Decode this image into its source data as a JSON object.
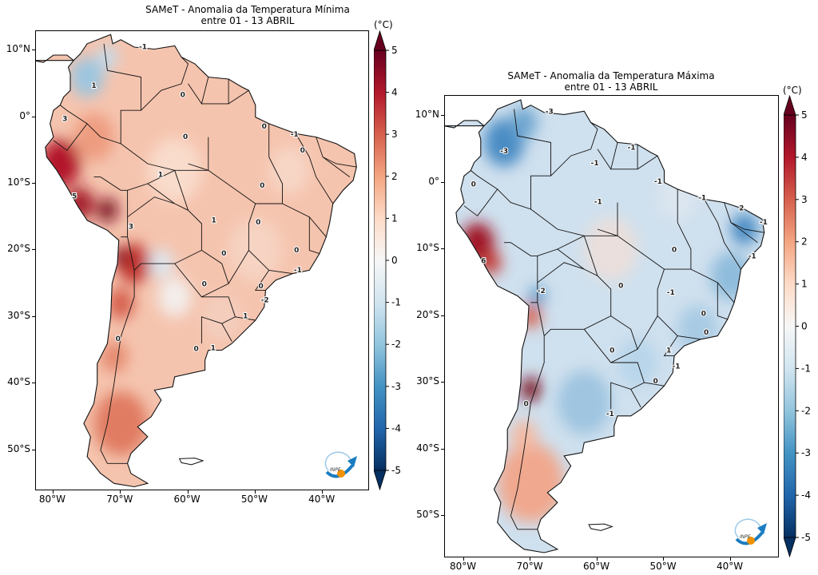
{
  "colors": {
    "scale": [
      "#053061",
      "#2166ac",
      "#4393c3",
      "#92c5de",
      "#d1e5f0",
      "#f7f7f7",
      "#fddbc7",
      "#f4a582",
      "#d6604d",
      "#b2182b",
      "#67001f"
    ],
    "border": "#000000",
    "logo_blue": "#1a7cc1",
    "logo_orange": "#f39200"
  },
  "maps": [
    {
      "title_line1": "SAMeT - Anomalia da Temperatura Mínima",
      "title_line2": "entre 01 - 13 ABRIL",
      "unit": "(°C)",
      "colorbar_ticks": [
        "5",
        "4",
        "3",
        "2",
        "1",
        "0",
        "-1",
        "-2",
        "-3",
        "-4",
        "-5"
      ],
      "colorbar_range": [
        -5,
        5
      ],
      "lon_ticks": [
        {
          "value": -80,
          "label": "80°W"
        },
        {
          "value": -70,
          "label": "70°W"
        },
        {
          "value": -60,
          "label": "60°W"
        },
        {
          "value": -50,
          "label": "50°W"
        },
        {
          "value": -40,
          "label": "40°W"
        }
      ],
      "lat_ticks": [
        {
          "value": 10,
          "label": "10°N"
        },
        {
          "value": 0,
          "label": "0°"
        },
        {
          "value": -10,
          "label": "10°S"
        },
        {
          "value": -20,
          "label": "20°S"
        },
        {
          "value": -30,
          "label": "30°S"
        },
        {
          "value": -40,
          "label": "40°S"
        },
        {
          "value": -50,
          "label": "50°S"
        }
      ],
      "contour_labels": [
        {
          "t": "-1",
          "lon": -66.7,
          "lat": 10.5
        },
        {
          "t": "1",
          "lon": -74,
          "lat": 4.7
        },
        {
          "t": "3",
          "lon": -78.3,
          "lat": -0.3
        },
        {
          "t": "0",
          "lon": -60.8,
          "lat": 3.3
        },
        {
          "t": "0",
          "lon": -60.4,
          "lat": -3
        },
        {
          "t": "0",
          "lon": -48.7,
          "lat": -1.4
        },
        {
          "t": "-1",
          "lon": -44.2,
          "lat": -2.6
        },
        {
          "t": "0",
          "lon": -43,
          "lat": -5
        },
        {
          "t": "1",
          "lon": -64.1,
          "lat": -8.7
        },
        {
          "t": "5",
          "lon": -76.9,
          "lat": -11.9
        },
        {
          "t": "0",
          "lon": -49,
          "lat": -10.3
        },
        {
          "t": "3",
          "lon": -68.5,
          "lat": -16.5
        },
        {
          "t": "1",
          "lon": -56.2,
          "lat": -15.5
        },
        {
          "t": "0",
          "lon": -49.6,
          "lat": -15.8
        },
        {
          "t": "0",
          "lon": -54.7,
          "lat": -20.5
        },
        {
          "t": "0",
          "lon": -43.9,
          "lat": -20
        },
        {
          "t": "-1",
          "lon": -43.7,
          "lat": -23
        },
        {
          "t": "0",
          "lon": -49.2,
          "lat": -25.4
        },
        {
          "t": "-2",
          "lon": -48.6,
          "lat": -27.5
        },
        {
          "t": "1",
          "lon": -51.5,
          "lat": -29.9
        },
        {
          "t": "0",
          "lon": -70.4,
          "lat": -33.3
        },
        {
          "t": "0",
          "lon": -58.8,
          "lat": -34.8
        },
        {
          "t": "1",
          "lon": -56.3,
          "lat": -34.7
        },
        {
          "t": "0",
          "lon": -57.6,
          "lat": -25.1
        }
      ],
      "logo_text": "INPE"
    },
    {
      "title_line1": "SAMeT - Anomalia da Temperatura Máxima",
      "title_line2": "entre 01 - 13 ABRIL",
      "unit": "(°C)",
      "colorbar_ticks": [
        "5",
        "4",
        "3",
        "2",
        "1",
        "0",
        "-1",
        "-2",
        "-3",
        "-4",
        "-5"
      ],
      "colorbar_range": [
        -5,
        5
      ],
      "lon_ticks": [
        {
          "value": -80,
          "label": "80°W"
        },
        {
          "value": -70,
          "label": "70°W"
        },
        {
          "value": -60,
          "label": "60°W"
        },
        {
          "value": -50,
          "label": "50°W"
        },
        {
          "value": -40,
          "label": "40°W"
        }
      ],
      "lat_ticks": [
        {
          "value": 10,
          "label": "10°N"
        },
        {
          "value": 0,
          "label": "0°"
        },
        {
          "value": -10,
          "label": "10°S"
        },
        {
          "value": -20,
          "label": "20°S"
        },
        {
          "value": -30,
          "label": "30°S"
        },
        {
          "value": -40,
          "label": "40°S"
        },
        {
          "value": -50,
          "label": "50°S"
        }
      ],
      "contour_labels": [
        {
          "t": "-3",
          "lon": -67.2,
          "lat": 10.6
        },
        {
          "t": "-3",
          "lon": -74,
          "lat": 4.7
        },
        {
          "t": "0",
          "lon": -78.6,
          "lat": -0.3
        },
        {
          "t": "-1",
          "lon": -60.4,
          "lat": 2.9
        },
        {
          "t": "-1",
          "lon": -54.9,
          "lat": 5.2
        },
        {
          "t": "-1",
          "lon": -50.9,
          "lat": 0.1
        },
        {
          "t": "-1",
          "lon": -44.3,
          "lat": -2.3
        },
        {
          "t": "2",
          "lon": -38.4,
          "lat": -3.9
        },
        {
          "t": "-1",
          "lon": -35.1,
          "lat": -6
        },
        {
          "t": "-1",
          "lon": -59.9,
          "lat": -2.9
        },
        {
          "t": "6",
          "lon": -77.1,
          "lat": -11.8
        },
        {
          "t": "0",
          "lon": -48.5,
          "lat": -10.1
        },
        {
          "t": "-1",
          "lon": -36.8,
          "lat": -11.1
        },
        {
          "t": "-2",
          "lon": -68.4,
          "lat": -16.3
        },
        {
          "t": "0",
          "lon": -56.5,
          "lat": -15.5
        },
        {
          "t": "-1",
          "lon": -49,
          "lat": -16.5
        },
        {
          "t": "0",
          "lon": -44.1,
          "lat": -19.7
        },
        {
          "t": "0",
          "lon": -57.8,
          "lat": -25.2
        },
        {
          "t": "1",
          "lon": -49.3,
          "lat": -25.2
        },
        {
          "t": "-1",
          "lon": -48.2,
          "lat": -27.6
        },
        {
          "t": "0",
          "lon": -51.3,
          "lat": -29.8
        },
        {
          "t": "0",
          "lon": -70.7,
          "lat": -33.2
        },
        {
          "t": "-1",
          "lon": -58.1,
          "lat": -34.7
        },
        {
          "t": "0",
          "lon": -43.7,
          "lat": -22.5
        }
      ],
      "logo_text": "INPE"
    }
  ]
}
